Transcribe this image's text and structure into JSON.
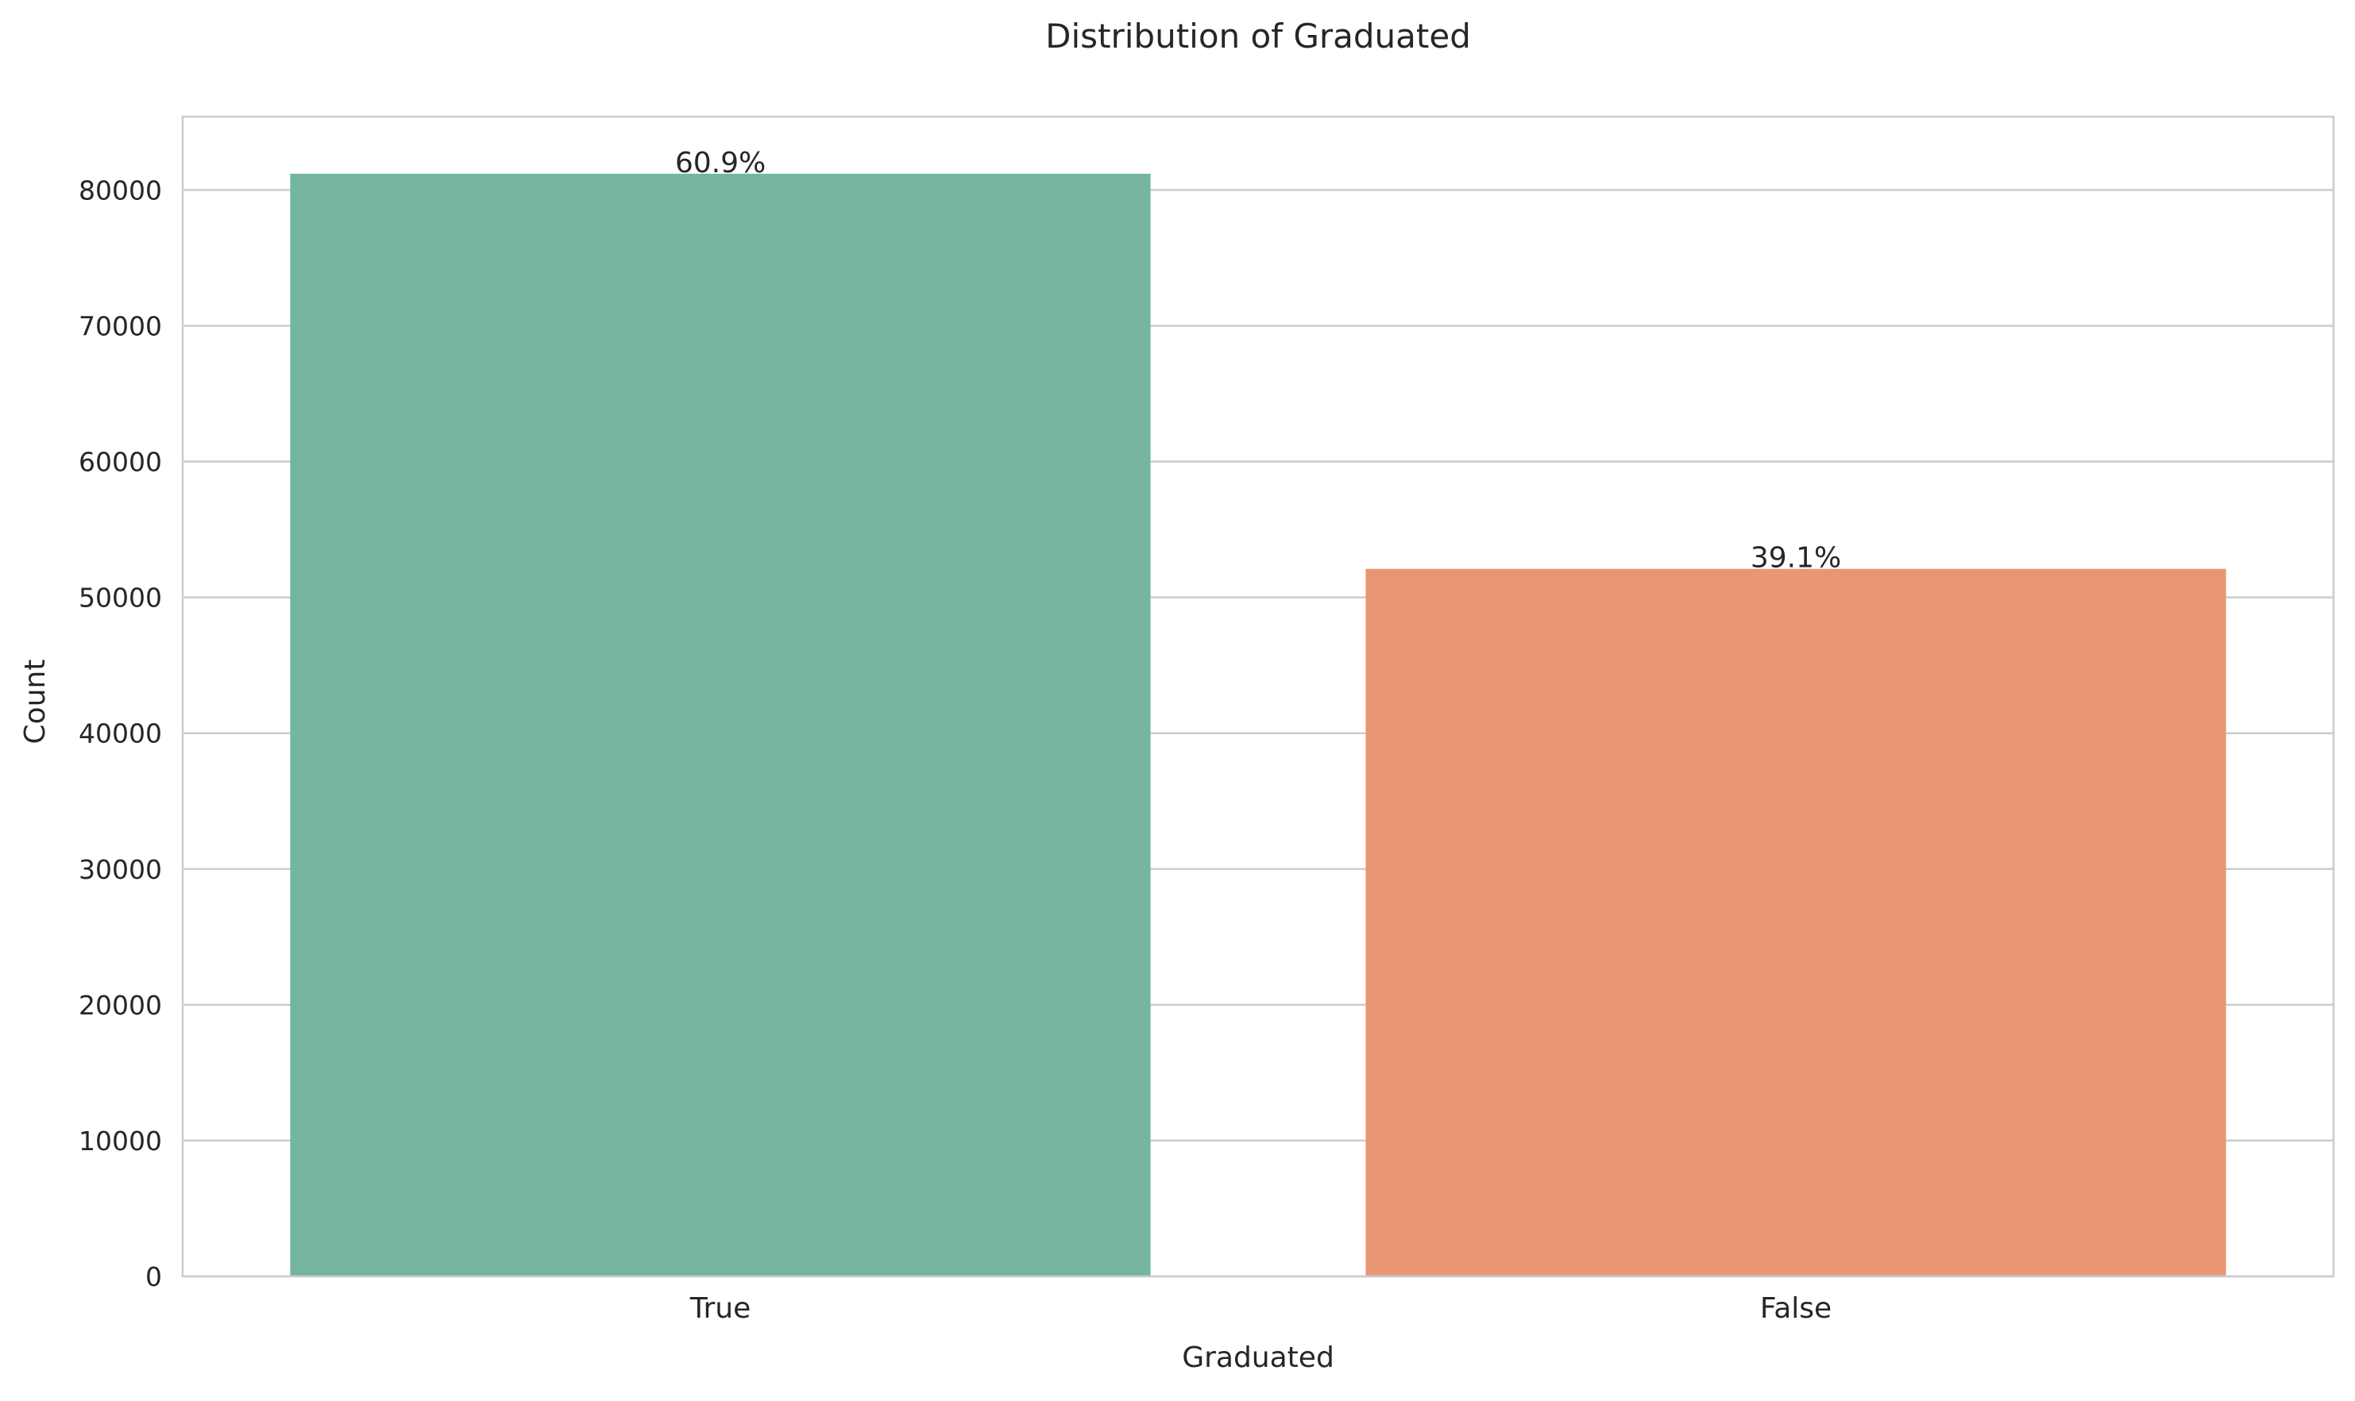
{
  "chart_data": {
    "type": "bar",
    "title": "Distribution of Graduated",
    "xlabel": "Graduated",
    "ylabel": "Count",
    "categories": [
      "True",
      "False"
    ],
    "values": [
      81200,
      52100
    ],
    "data_labels": [
      "60.9%",
      "39.1%"
    ],
    "colors": [
      "#75b5a0",
      "#e99674"
    ],
    "ylim": [
      0,
      85400
    ],
    "yticks": [
      0,
      10000,
      20000,
      30000,
      40000,
      50000,
      60000,
      70000,
      80000
    ],
    "grid": true,
    "grid_axis": "y",
    "legend": false
  }
}
